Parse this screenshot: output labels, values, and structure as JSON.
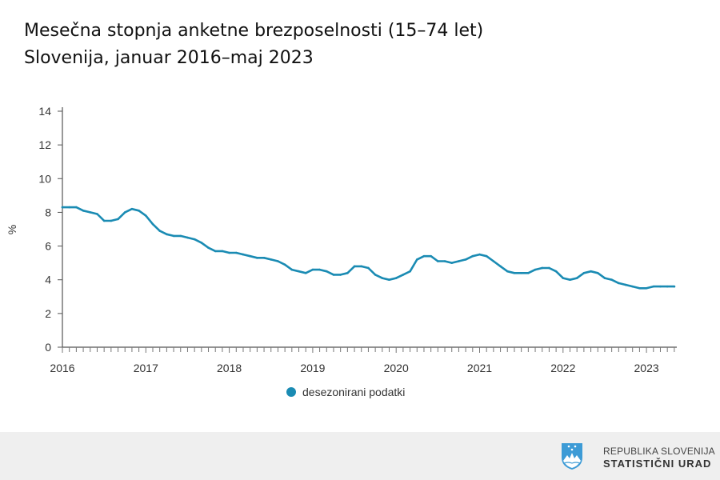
{
  "header": {
    "title_line1": "Mesečna stopnja anketne brezposelnosti (15–74 let)",
    "title_line2": "Slovenija, januar 2016–maj 2023"
  },
  "footer": {
    "org_line1": "REPUBLIKA SLOVENIJA",
    "org_line2": "STATISTIČNI URAD"
  },
  "chart_data": {
    "type": "line",
    "title": "Mesečna stopnja anketne brezposelnosti (15–74 let)",
    "subtitle": "Slovenija, januar 2016–maj 2023",
    "xlabel": "",
    "ylabel": "%",
    "ylim": [
      0,
      14
    ],
    "yticks": [
      "0",
      "2",
      "4",
      "6",
      "8",
      "10",
      "12",
      "14"
    ],
    "xticks": [
      "2016",
      "2017",
      "2018",
      "2019",
      "2020",
      "2021",
      "2022",
      "2023"
    ],
    "x_start": "2016-01",
    "x_end": "2023-05",
    "frequency": "monthly",
    "grid": false,
    "legend_position": "bottom",
    "series": [
      {
        "name": "desezonirani podatki",
        "color": "#1a8bb3",
        "values": [
          8.3,
          8.3,
          8.3,
          8.1,
          8.0,
          7.9,
          7.5,
          7.5,
          7.6,
          8.0,
          8.2,
          8.1,
          7.8,
          7.3,
          6.9,
          6.7,
          6.6,
          6.6,
          6.5,
          6.4,
          6.2,
          5.9,
          5.7,
          5.7,
          5.6,
          5.6,
          5.5,
          5.4,
          5.3,
          5.3,
          5.2,
          5.1,
          4.9,
          4.6,
          4.5,
          4.4,
          4.6,
          4.6,
          4.5,
          4.3,
          4.3,
          4.4,
          4.8,
          4.8,
          4.7,
          4.3,
          4.1,
          4.0,
          4.1,
          4.3,
          4.5,
          5.2,
          5.4,
          5.4,
          5.1,
          5.1,
          5.0,
          5.1,
          5.2,
          5.4,
          5.5,
          5.4,
          5.1,
          4.8,
          4.5,
          4.4,
          4.4,
          4.4,
          4.6,
          4.7,
          4.7,
          4.5,
          4.1,
          4.0,
          4.1,
          4.4,
          4.5,
          4.4,
          4.1,
          4.0,
          3.8,
          3.7,
          3.6,
          3.5,
          3.5,
          3.6,
          3.6,
          3.6,
          3.6
        ]
      }
    ]
  }
}
